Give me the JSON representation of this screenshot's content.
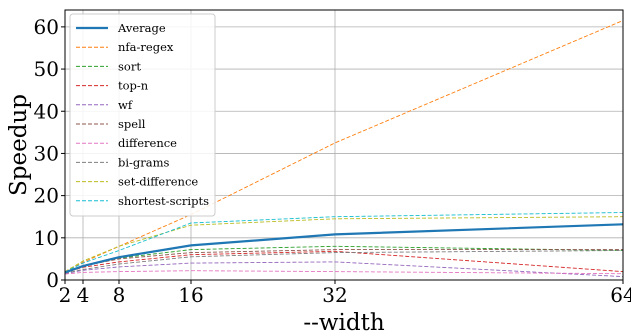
{
  "chart_data": {
    "type": "line",
    "title": "",
    "xlabel": "--width",
    "ylabel": "Speedup",
    "x": [
      2,
      4,
      8,
      16,
      32,
      64
    ],
    "xticks": [
      "2",
      "4",
      "8",
      "16",
      "32",
      "64"
    ],
    "yticks": [
      "0",
      "10",
      "20",
      "30",
      "40",
      "50",
      "60"
    ],
    "xlim": [
      2,
      64
    ],
    "ylim": [
      0,
      64
    ],
    "grid": true,
    "legend": "upper-left",
    "series": [
      {
        "name": "Average",
        "values": [
          1.8,
          3.3,
          5.4,
          8.2,
          10.8,
          13.2
        ],
        "color": "#1f77b4",
        "style": "solid"
      },
      {
        "name": "nfa-regex",
        "values": [
          1.9,
          4.2,
          8.0,
          15.5,
          32.5,
          61.5
        ],
        "color": "#ff7f0e",
        "style": "dashed"
      },
      {
        "name": "sort",
        "values": [
          1.8,
          3.2,
          5.2,
          7.2,
          8.0,
          7.0
        ],
        "color": "#2ca02c",
        "style": "dashed"
      },
      {
        "name": "top-n",
        "values": [
          1.7,
          3.0,
          4.3,
          6.0,
          6.8,
          2.0
        ],
        "color": "#d62728",
        "style": "dashed"
      },
      {
        "name": "wf",
        "values": [
          1.5,
          2.3,
          3.1,
          4.0,
          4.3,
          0.8
        ],
        "color": "#9467bd",
        "style": "dashed"
      },
      {
        "name": "spell",
        "values": [
          1.8,
          3.3,
          5.0,
          6.5,
          7.2,
          7.2
        ],
        "color": "#8c564b",
        "style": "dashed"
      },
      {
        "name": "difference",
        "values": [
          1.4,
          1.8,
          2.0,
          2.2,
          2.0,
          1.5
        ],
        "color": "#e377c2",
        "style": "dashed"
      },
      {
        "name": "bi-grams",
        "values": [
          1.6,
          2.5,
          3.8,
          5.5,
          6.5,
          7.0
        ],
        "color": "#7f7f7f",
        "style": "dashed"
      },
      {
        "name": "set-difference",
        "values": [
          2.0,
          4.5,
          8.0,
          13.0,
          14.5,
          15.0
        ],
        "color": "#bcbd22",
        "style": "dashed"
      },
      {
        "name": "shortest-scripts",
        "values": [
          1.9,
          4.0,
          7.0,
          13.5,
          15.0,
          16.0
        ],
        "color": "#17becf",
        "style": "dashed"
      }
    ]
  }
}
